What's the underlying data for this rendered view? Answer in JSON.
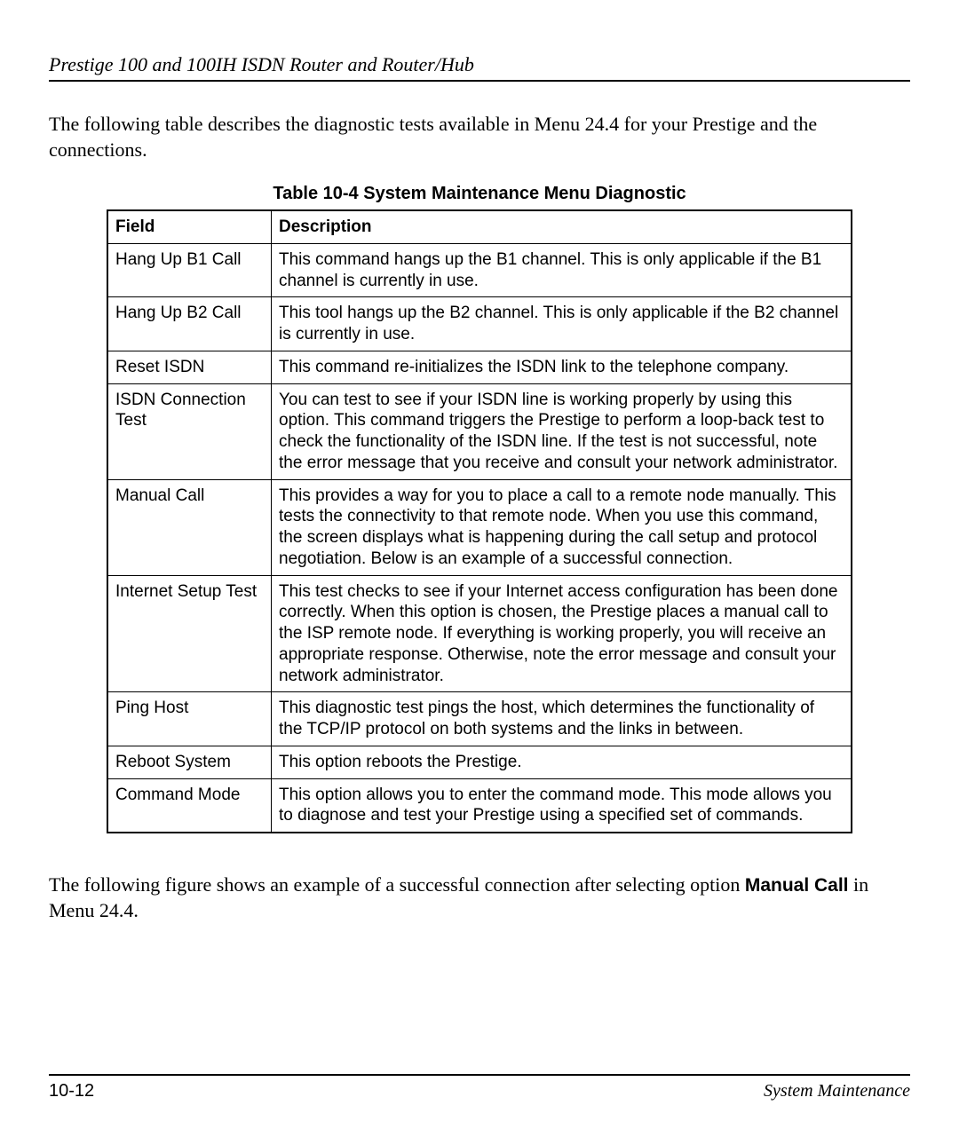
{
  "header": {
    "title": "Prestige 100 and 100IH ISDN Router and Router/Hub"
  },
  "intro": {
    "text": "The following table describes the diagnostic tests available in Menu 24.4 for your Prestige and the connections."
  },
  "table": {
    "caption": "Table 10-4 System Maintenance Menu Diagnostic",
    "header_field": "Field",
    "header_desc": "Description",
    "rows": [
      {
        "field": "Hang Up B1 Call",
        "desc": "This command hangs up the B1 channel. This is only applicable if the B1 channel is currently in use."
      },
      {
        "field": "Hang Up B2 Call",
        "desc": "This tool hangs up the B2 channel. This is only applicable if the B2 channel is currently in use."
      },
      {
        "field": "Reset ISDN",
        "desc": "This command re-initializes the ISDN link to the telephone company."
      },
      {
        "field": "ISDN Connection Test",
        "desc": "You can test to see if your ISDN line is working properly by using this option. This command triggers the Prestige to perform a loop-back test to check the functionality of the ISDN line. If the test is not successful, note the error message that you receive and consult your network administrator."
      },
      {
        "field": "Manual Call",
        "desc": "This provides a way for you to place a call to a remote node manually. This tests the connectivity to that remote node. When you use this command, the screen displays what is happening during the call setup and protocol negotiation. Below is an example of a successful connection."
      },
      {
        "field": "Internet Setup Test",
        "desc": "This test checks to see if your Internet access configuration has been done correctly. When this option is chosen, the Prestige places a manual call to the ISP remote node. If everything is working properly, you will receive an appropriate response. Otherwise, note the error message and consult your network administrator."
      },
      {
        "field": "Ping Host",
        "desc": "This diagnostic test pings the host, which determines the functionality of the TCP/IP protocol on both systems and the links in between."
      },
      {
        "field": "Reboot System",
        "desc": "This option reboots the Prestige."
      },
      {
        "field": "Command Mode",
        "desc": "This option allows you to enter the command mode. This mode allows you to diagnose and test your Prestige using a specified set of commands."
      }
    ]
  },
  "after": {
    "pre": "The following figure shows an example of a successful connection after selecting option ",
    "bold1": "Manual Call",
    "mid": " in Menu 24.4."
  },
  "footer": {
    "page": "10-12",
    "section": "System Maintenance"
  }
}
